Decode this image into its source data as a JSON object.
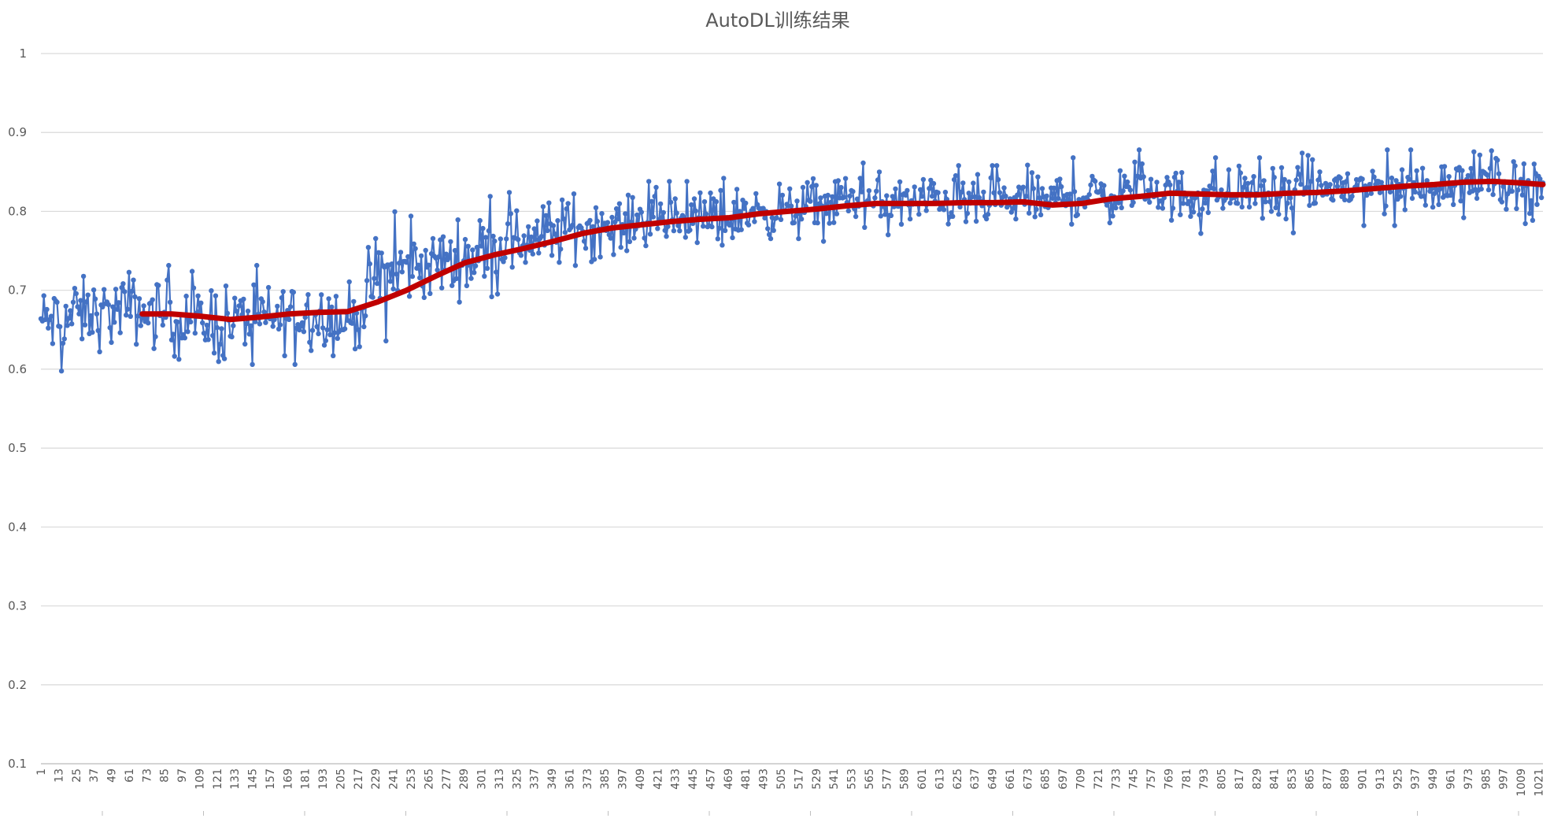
{
  "chart_data": {
    "type": "line",
    "title": "AutoDL训练结果",
    "xlabel": "",
    "ylabel": "",
    "ylim": [
      0.1,
      1.0
    ],
    "xlim": [
      1,
      1024
    ],
    "grid": true,
    "yticks": [
      "0.1",
      "0.2",
      "0.3",
      "0.4",
      "0.5",
      "0.6",
      "0.7",
      "0.8",
      "0.9",
      "1"
    ],
    "xtick_step": 12,
    "xtick_first": 1,
    "xtick_last": 1021,
    "series": [
      {
        "color": "#4472c4",
        "style": "line-with-markers",
        "x": [
          1,
          13,
          25,
          37,
          49,
          61,
          73,
          85,
          97,
          109,
          121,
          133,
          145,
          157,
          169,
          181,
          193,
          205,
          217,
          229,
          241,
          253,
          265,
          277,
          289,
          301,
          313,
          325,
          337,
          349,
          361,
          373,
          385,
          397,
          409,
          421,
          433,
          445,
          457,
          469,
          481,
          493,
          505,
          517,
          529,
          541,
          553,
          565,
          577,
          589,
          601,
          613,
          625,
          637,
          649,
          661,
          673,
          685,
          697,
          709,
          721,
          733,
          745,
          757,
          769,
          781,
          793,
          805,
          817,
          829,
          841,
          853,
          865,
          877,
          889,
          901,
          913,
          925,
          937,
          949,
          961,
          973,
          985,
          997,
          1009,
          1021
        ],
        "center": [
          0.66,
          0.66,
          0.67,
          0.67,
          0.67,
          0.68,
          0.67,
          0.67,
          0.66,
          0.66,
          0.66,
          0.66,
          0.67,
          0.66,
          0.67,
          0.67,
          0.67,
          0.66,
          0.67,
          0.71,
          0.72,
          0.73,
          0.73,
          0.74,
          0.74,
          0.75,
          0.76,
          0.76,
          0.77,
          0.77,
          0.78,
          0.78,
          0.78,
          0.78,
          0.79,
          0.79,
          0.79,
          0.79,
          0.79,
          0.79,
          0.8,
          0.8,
          0.8,
          0.8,
          0.81,
          0.81,
          0.82,
          0.81,
          0.81,
          0.81,
          0.81,
          0.82,
          0.81,
          0.81,
          0.81,
          0.81,
          0.82,
          0.81,
          0.82,
          0.82,
          0.82,
          0.82,
          0.83,
          0.83,
          0.82,
          0.82,
          0.82,
          0.82,
          0.83,
          0.82,
          0.82,
          0.82,
          0.83,
          0.83,
          0.83,
          0.83,
          0.83,
          0.83,
          0.83,
          0.83,
          0.84,
          0.84,
          0.84,
          0.84,
          0.83,
          0.84
        ],
        "spread": [
          0.04,
          0.04,
          0.04,
          0.04,
          0.04,
          0.04,
          0.04,
          0.04,
          0.04,
          0.04,
          0.05,
          0.04,
          0.04,
          0.04,
          0.04,
          0.04,
          0.04,
          0.04,
          0.04,
          0.05,
          0.05,
          0.04,
          0.04,
          0.04,
          0.04,
          0.04,
          0.04,
          0.04,
          0.04,
          0.04,
          0.04,
          0.04,
          0.03,
          0.03,
          0.03,
          0.03,
          0.03,
          0.03,
          0.04,
          0.03,
          0.03,
          0.03,
          0.03,
          0.03,
          0.03,
          0.03,
          0.03,
          0.03,
          0.04,
          0.03,
          0.03,
          0.03,
          0.03,
          0.03,
          0.03,
          0.03,
          0.03,
          0.03,
          0.03,
          0.03,
          0.03,
          0.03,
          0.03,
          0.03,
          0.03,
          0.03,
          0.03,
          0.03,
          0.03,
          0.03,
          0.03,
          0.03,
          0.03,
          0.03,
          0.03,
          0.03,
          0.03,
          0.03,
          0.03,
          0.03,
          0.03,
          0.03,
          0.03,
          0.03,
          0.03,
          0.03
        ]
      },
      {
        "color": "#c00000",
        "style": "line",
        "x": [
          70,
          90,
          110,
          130,
          150,
          170,
          190,
          210,
          230,
          250,
          270,
          290,
          310,
          330,
          350,
          370,
          390,
          410,
          430,
          450,
          470,
          490,
          510,
          530,
          550,
          570,
          590,
          610,
          630,
          650,
          670,
          690,
          710,
          730,
          750,
          770,
          790,
          810,
          830,
          850,
          870,
          890,
          910,
          930,
          950,
          970,
          990,
          1010,
          1024
        ],
        "values": [
          0.67,
          0.67,
          0.667,
          0.663,
          0.666,
          0.67,
          0.672,
          0.673,
          0.685,
          0.7,
          0.718,
          0.735,
          0.745,
          0.753,
          0.762,
          0.772,
          0.779,
          0.783,
          0.787,
          0.79,
          0.792,
          0.797,
          0.8,
          0.803,
          0.807,
          0.81,
          0.81,
          0.81,
          0.811,
          0.811,
          0.812,
          0.808,
          0.81,
          0.816,
          0.819,
          0.823,
          0.822,
          0.821,
          0.821,
          0.823,
          0.824,
          0.826,
          0.829,
          0.832,
          0.834,
          0.837,
          0.838,
          0.836,
          0.834
        ]
      }
    ]
  }
}
